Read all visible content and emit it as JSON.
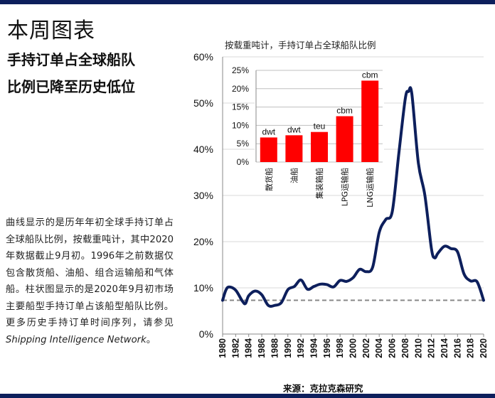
{
  "page": {
    "title": "本周图表",
    "headline_line1": "手持订单占全球船队",
    "headline_line2": "比例已降至历史低位",
    "description_plain": "曲线显示的是历年年初全球手持订单占全球船队比例，按载重吨计，其中2020年数据截止9月初。1996年之前数据仅包含散货船、油船、组合运输船和气体船。柱状图显示的是2020年9月初市场主要船型手持订单占该船型船队比例。更多历史手持订单时间序列，请参见",
    "description_italic": "Shipping Intelligence Network",
    "description_end": "。",
    "chart_subtitle": "按载重吨计，手持订单占全球船队比例",
    "source": "来源：克拉克森研究"
  },
  "colors": {
    "rule": "#0d1f5c",
    "line": "#0d1f5c",
    "bar": "#ff0000",
    "dashed": "#888888",
    "grid": "#d9d9d9"
  },
  "chart_data": [
    {
      "type": "line",
      "ylim": [
        0,
        60
      ],
      "yticks": [
        "0%",
        "10%",
        "20%",
        "30%",
        "40%",
        "50%",
        "60%"
      ],
      "xticks": [
        "1980",
        "1982",
        "1984",
        "1986",
        "1988",
        "1990",
        "1992",
        "1994",
        "1996",
        "1998",
        "2000",
        "2002",
        "2004",
        "2006",
        "2008",
        "2010",
        "2012",
        "2014",
        "2016",
        "2018",
        "2020"
      ],
      "grid": true,
      "reference_line": 7.3,
      "series": [
        {
          "x": [
            1980,
            1980.5,
            1981,
            1982,
            1983,
            1983.5,
            1984,
            1985,
            1986,
            1987,
            1988,
            1989,
            1990,
            1991,
            1992,
            1993,
            1994,
            1995,
            1996,
            1997,
            1998,
            1999,
            2000,
            2001,
            2002,
            2003,
            2004,
            2005,
            2006,
            2007,
            2008,
            2008.5,
            2009,
            2010,
            2011,
            2012,
            2012.5,
            2013,
            2014,
            2015,
            2016,
            2017,
            2018,
            2019,
            2020
          ],
          "values": [
            7.3,
            9.5,
            10.2,
            9.5,
            7.2,
            6.6,
            8.3,
            9.3,
            8.5,
            6.2,
            6.2,
            6.8,
            9.6,
            10.3,
            11.7,
            9.7,
            10.3,
            10.8,
            10.7,
            10.2,
            11.6,
            11.4,
            12.2,
            14.0,
            13.5,
            14.5,
            22.0,
            24.8,
            26.5,
            39.0,
            51.0,
            52.5,
            52.0,
            37.0,
            30.0,
            18.5,
            16.5,
            17.5,
            19.0,
            18.5,
            17.8,
            13.0,
            11.5,
            11.3,
            7.3
          ]
        }
      ]
    },
    {
      "type": "bar",
      "ylim": [
        0,
        25
      ],
      "yticks": [
        "0%",
        "5%",
        "10%",
        "15%",
        "20%",
        "25%"
      ],
      "categories": [
        "散货船",
        "油船",
        "集装箱船",
        "LPG运输船",
        "LNG运输船"
      ],
      "values": [
        6.7,
        7.3,
        8.2,
        12.5,
        22.2
      ],
      "units": [
        "dwt",
        "dwt",
        "teu",
        "cbm",
        "cbm"
      ],
      "grid": true
    }
  ]
}
